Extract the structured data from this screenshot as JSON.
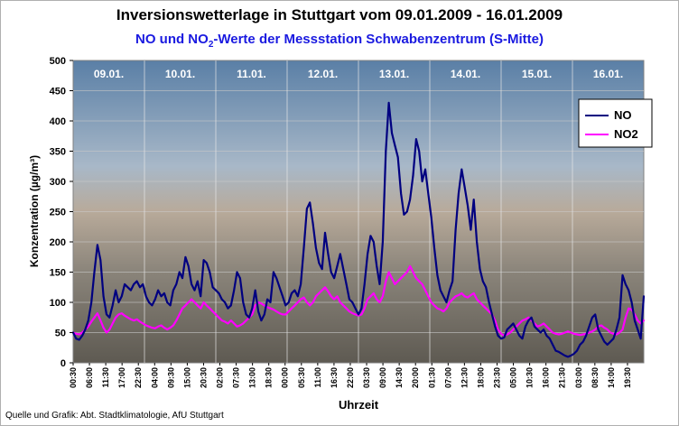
{
  "header": {
    "title": "Inversionswetterlage in Stuttgart vom 09.01.2009 - 16.01.2009",
    "subtitle_main": "NO und NO",
    "subtitle_sub": "2",
    "subtitle_rest": "-Werte der Messstation Schwabenzentrum (S-Mitte)"
  },
  "footer": {
    "source": "Quelle und Grafik: Abt. Stadtklimatologie, AfU Stuttgart"
  },
  "chart_data": {
    "type": "line",
    "xlabel": "Uhrzeit",
    "ylabel": "Konzentration (µg/m³)",
    "ylim": [
      0,
      500
    ],
    "yticks": [
      0,
      50,
      100,
      150,
      200,
      250,
      300,
      350,
      400,
      450,
      500
    ],
    "grid": "horizontal",
    "legend_position": "top-right",
    "days": [
      "09.01.",
      "10.01.",
      "11.01.",
      "12.01.",
      "13.01.",
      "14.01.",
      "15.01.",
      "16.01."
    ],
    "xtick_labels": [
      "00:30",
      "06:00",
      "11:30",
      "17:00",
      "22:30",
      "04:00",
      "09:30",
      "15:00",
      "20:30",
      "02:00",
      "07:30",
      "13:00",
      "18:30",
      "00:00",
      "05:30",
      "11:00",
      "16:30",
      "22:00",
      "03:30",
      "09:00",
      "14:30",
      "20:00",
      "01:30",
      "07:00",
      "12:30",
      "18:00",
      "23:30",
      "05:00",
      "10:30",
      "16:00",
      "21:30",
      "03:00",
      "08:30",
      "14:00",
      "19:30"
    ],
    "series": [
      {
        "name": "NO",
        "color": "#000080",
        "values": [
          50,
          40,
          38,
          45,
          55,
          70,
          100,
          150,
          195,
          170,
          110,
          80,
          75,
          95,
          120,
          100,
          110,
          130,
          125,
          120,
          130,
          135,
          125,
          130,
          110,
          100,
          95,
          105,
          120,
          110,
          115,
          100,
          95,
          120,
          130,
          150,
          140,
          175,
          160,
          130,
          120,
          135,
          110,
          170,
          165,
          150,
          125,
          120,
          115,
          105,
          100,
          90,
          95,
          120,
          150,
          140,
          100,
          80,
          75,
          90,
          120,
          85,
          70,
          80,
          105,
          100,
          150,
          140,
          125,
          110,
          95,
          100,
          115,
          120,
          110,
          130,
          190,
          255,
          265,
          230,
          190,
          165,
          155,
          215,
          180,
          150,
          140,
          160,
          180,
          155,
          130,
          105,
          100,
          90,
          80,
          90,
          130,
          180,
          210,
          200,
          160,
          130,
          200,
          350,
          430,
          380,
          360,
          340,
          280,
          245,
          250,
          270,
          310,
          370,
          350,
          300,
          320,
          280,
          240,
          190,
          145,
          120,
          110,
          100,
          120,
          135,
          220,
          280,
          320,
          290,
          260,
          220,
          270,
          200,
          155,
          135,
          125,
          100,
          80,
          60,
          45,
          40,
          42,
          55,
          60,
          65,
          55,
          45,
          40,
          60,
          70,
          75,
          60,
          55,
          50,
          55,
          45,
          40,
          30,
          20,
          18,
          15,
          12,
          10,
          12,
          15,
          20,
          30,
          35,
          45,
          60,
          75,
          80,
          55,
          45,
          35,
          30,
          35,
          40,
          55,
          75,
          145,
          130,
          120,
          100,
          70,
          55,
          40,
          110
        ]
      },
      {
        "name": "NO2",
        "color": "#ff00ff",
        "values": [
          50,
          48,
          47,
          50,
          55,
          60,
          68,
          75,
          82,
          70,
          58,
          50,
          55,
          65,
          75,
          80,
          82,
          78,
          75,
          72,
          70,
          72,
          68,
          65,
          62,
          60,
          58,
          57,
          60,
          62,
          58,
          55,
          58,
          62,
          70,
          80,
          90,
          95,
          100,
          105,
          100,
          95,
          90,
          100,
          95,
          90,
          85,
          80,
          75,
          70,
          68,
          65,
          70,
          65,
          60,
          62,
          65,
          70,
          75,
          80,
          95,
          100,
          98,
          95,
          92,
          90,
          88,
          85,
          82,
          80,
          80,
          85,
          90,
          95,
          100,
          105,
          108,
          100,
          95,
          100,
          110,
          115,
          120,
          125,
          118,
          110,
          105,
          110,
          100,
          95,
          90,
          85,
          82,
          80,
          78,
          80,
          90,
          105,
          110,
          115,
          105,
          100,
          110,
          135,
          150,
          140,
          130,
          135,
          140,
          145,
          150,
          160,
          150,
          140,
          135,
          130,
          120,
          110,
          100,
          95,
          90,
          88,
          85,
          90,
          100,
          105,
          110,
          112,
          115,
          110,
          108,
          112,
          115,
          105,
          100,
          95,
          90,
          85,
          80,
          70,
          55,
          48,
          45,
          47,
          50,
          55,
          60,
          65,
          70,
          72,
          75,
          70,
          65,
          60,
          62,
          65,
          60,
          55,
          50,
          48,
          47,
          48,
          50,
          52,
          50,
          48,
          47,
          46,
          47,
          48,
          50,
          52,
          55,
          60,
          62,
          58,
          55,
          50,
          48,
          47,
          50,
          55,
          75,
          90,
          88,
          80,
          70,
          65,
          70
        ]
      }
    ]
  }
}
